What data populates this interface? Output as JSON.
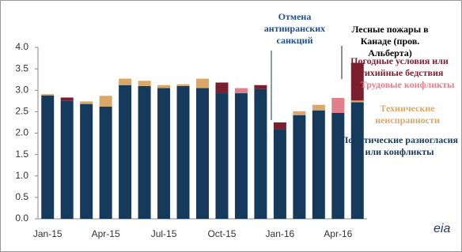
{
  "chart_data": {
    "type": "stacked_bar",
    "categories": [
      "Jan-15",
      null,
      null,
      "Apr-15",
      null,
      null,
      "Jul-15",
      null,
      null,
      "Oct-15",
      null,
      null,
      "Jan-16",
      null,
      null,
      "Apr-16",
      null
    ],
    "series": [
      {
        "name": "Политические разногласия или конфликты",
        "color": "#153a5b",
        "values": [
          2.88,
          2.75,
          2.68,
          2.62,
          3.12,
          3.1,
          3.05,
          3.1,
          3.05,
          2.93,
          2.93,
          3.03,
          2.1,
          2.42,
          2.53,
          2.47,
          2.72
        ]
      },
      {
        "name": "Технические неисправности",
        "color": "#d9a868",
        "values": [
          0.03,
          0,
          0.06,
          0.25,
          0.15,
          0.12,
          0.07,
          0.04,
          0.22,
          0,
          0,
          0,
          0,
          0.09,
          0.13,
          0,
          0.04
        ]
      },
      {
        "name": "Трудовые конфликты",
        "color": "#e0808c",
        "values": [
          0,
          0,
          0,
          0,
          0,
          0,
          0,
          0,
          0,
          0,
          0.12,
          0,
          0,
          0,
          0,
          0.35,
          0
        ]
      },
      {
        "name": "Погодные условия или стихийные бедствия",
        "color": "#7b1f2f",
        "values": [
          0,
          0.08,
          0,
          0,
          0,
          0,
          0,
          0,
          0,
          0.25,
          0,
          0.09,
          0.15,
          0,
          0,
          0,
          0.88
        ]
      }
    ],
    "ylim": [
      0,
      4
    ],
    "yticks": [
      {
        "value": 0,
        "label": "0.0"
      },
      {
        "value": 0.5,
        "label": "0.5"
      },
      {
        "value": 1,
        "label": "1.0"
      },
      {
        "value": 1.5,
        "label": "1.5"
      },
      {
        "value": 2,
        "label": "2.0"
      },
      {
        "value": 2.5,
        "label": "2.5"
      },
      {
        "value": 3,
        "label": "3.0"
      },
      {
        "value": 3.5,
        "label": "3.5"
      },
      {
        "value": 4,
        "label": "4.0"
      }
    ],
    "annotations": [
      "Отмена антииранских санкций",
      "Лесные пожары в Канаде (пров. Альберта)"
    ],
    "logo": "eia"
  }
}
